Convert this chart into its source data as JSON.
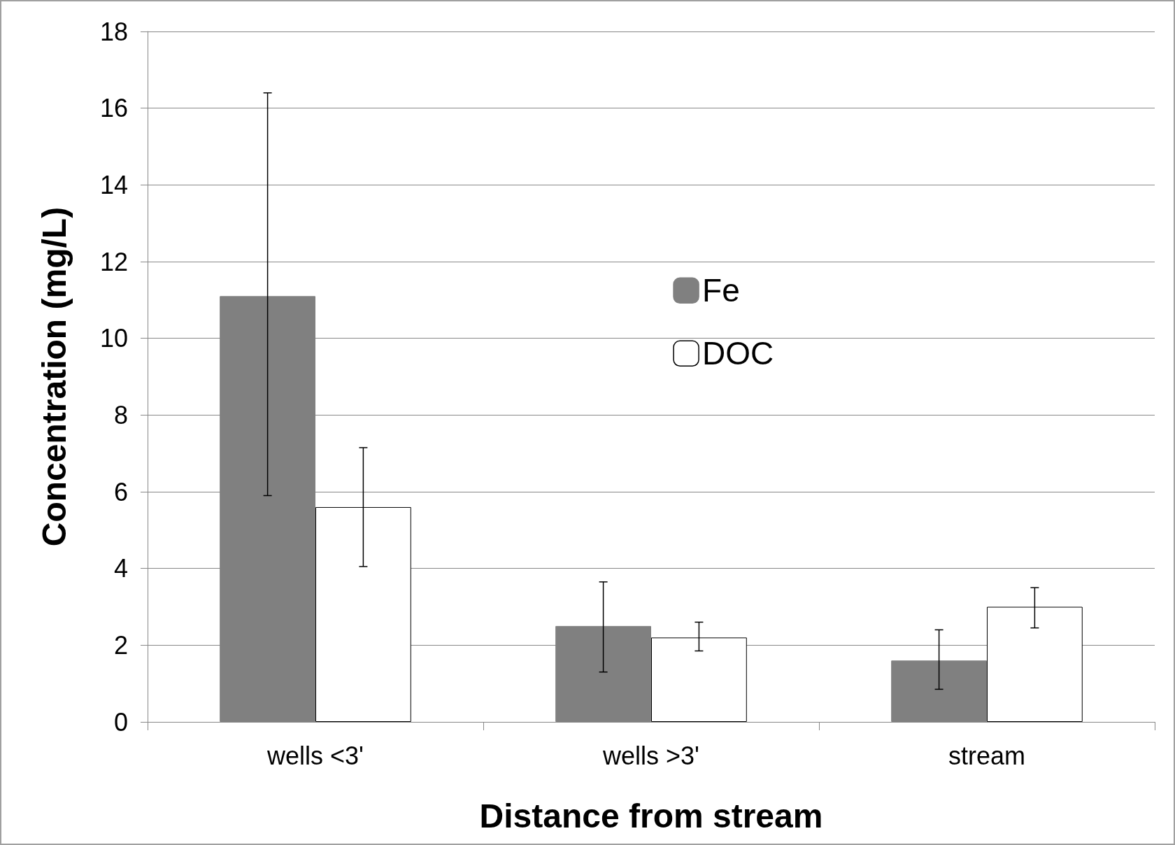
{
  "chart_data": {
    "type": "bar",
    "xlabel": "Distance from stream",
    "ylabel": "Concentration (mg/L)",
    "categories": [
      "wells <3'",
      "wells >3'",
      "stream"
    ],
    "series": [
      {
        "name": "Fe",
        "color": "#808080",
        "values": [
          11.1,
          2.5,
          1.6
        ],
        "errors": [
          [
            5.9,
            16.4
          ],
          [
            1.3,
            3.65
          ],
          [
            0.85,
            2.4
          ]
        ]
      },
      {
        "name": "DOC",
        "color": "#ffffff",
        "values": [
          5.6,
          2.2,
          3.0
        ],
        "errors": [
          [
            4.05,
            7.15
          ],
          [
            1.85,
            2.6
          ],
          [
            2.45,
            3.5
          ]
        ]
      }
    ],
    "ylim": [
      0,
      18
    ],
    "yticks": [
      0,
      2,
      4,
      6,
      8,
      10,
      12,
      14,
      16,
      18
    ],
    "grid": "y",
    "legend": "top"
  }
}
